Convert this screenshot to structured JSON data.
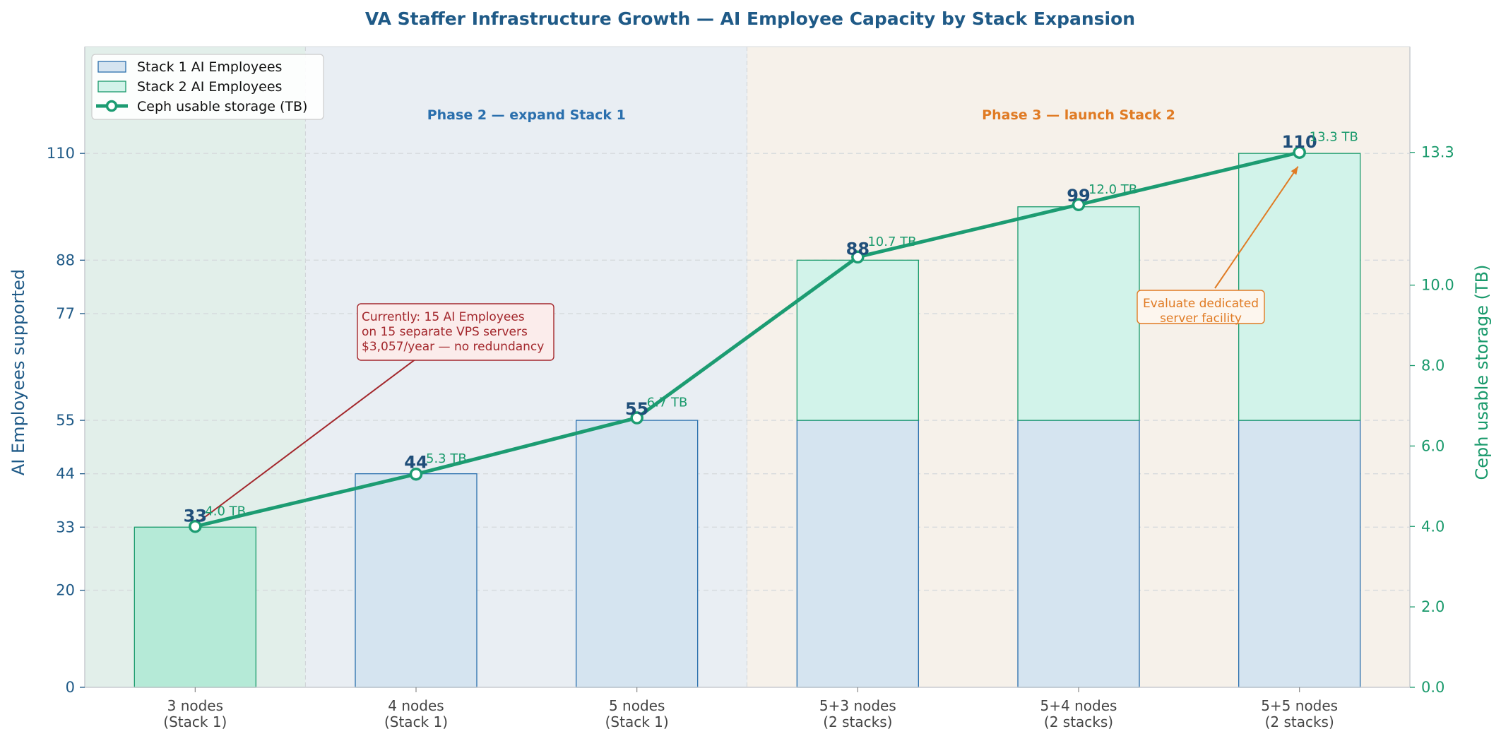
{
  "colors": {
    "stack1": "#d5e4f0",
    "stack1_edge": "#2a6fad",
    "stack2": "#d2f3ea",
    "stack2_edge": "#1a9a6c",
    "stack1_only_bar": "#b5ead7",
    "line": "#1c9c72",
    "phase1_bg": "#e2efea",
    "phase2_bg": "#e9eef3",
    "phase3_bg": "#f6f1ea",
    "left_axis": "#1f5a87",
    "right_axis": "#1a9a6c",
    "orange": "#e07b24",
    "red": "#a3272c"
  },
  "chart_data": {
    "type": "bar",
    "title": "VA Staffer Infrastructure Growth — AI Employee Capacity by Stack Expansion",
    "ylabel": "AI Employees supported",
    "y2label": "Ceph usable storage (TB)",
    "ylim": [
      0,
      132
    ],
    "y2lim": [
      0,
      15.93
    ],
    "yticks": [
      0,
      20,
      33,
      44,
      55,
      77,
      88,
      110
    ],
    "y2ticks": [
      "0.0",
      "2.0",
      "4.0",
      "6.0",
      "8.0",
      "10.0",
      "13.3"
    ],
    "y2tick_values": [
      0,
      2,
      4,
      6,
      8,
      10,
      13.3
    ],
    "categories": [
      [
        "3 nodes",
        "(Stack 1)"
      ],
      [
        "4 nodes",
        "(Stack 1)"
      ],
      [
        "5 nodes",
        "(Stack 1)"
      ],
      [
        "5+3 nodes",
        "(2 stacks)"
      ],
      [
        "5+4 nodes",
        "(2 stacks)"
      ],
      [
        "5+5 nodes",
        "(2 stacks)"
      ]
    ],
    "series": [
      {
        "name": "Stack 1 AI Employees",
        "values": [
          0,
          44,
          55,
          55,
          55,
          55
        ]
      },
      {
        "name": "Stack 2 AI Employees",
        "values": [
          33,
          0,
          0,
          33,
          44,
          55
        ]
      },
      {
        "name": "Ceph usable storage (TB)",
        "values": [
          4.0,
          5.3,
          6.7,
          10.7,
          12.0,
          13.3
        ],
        "axis": "right"
      }
    ],
    "totals": [
      "33",
      "44",
      "55",
      "88",
      "99",
      "110"
    ],
    "storage_labels": [
      "4.0 TB",
      "5.3 TB",
      "6.7 TB",
      "10.7 TB",
      "12.0 TB",
      "13.3 TB"
    ],
    "grid": "horizontal dashed",
    "legend": "top-left",
    "phases": [
      {
        "label": "",
        "from": 0,
        "to": 1
      },
      {
        "label": "Phase 2 — expand Stack 1",
        "from": 1,
        "to": 3
      },
      {
        "label": "Phase 3 — launch Stack 2",
        "from": 3,
        "to": 6
      }
    ],
    "annotations": [
      {
        "lines": [
          "Currently: 15 AI Employees",
          "on 15 separate VPS servers",
          "$3,057/year — no redundancy"
        ],
        "target_index": 0
      },
      {
        "lines": [
          "Evaluate dedicated",
          "server facility"
        ],
        "target_index": 5
      }
    ]
  }
}
